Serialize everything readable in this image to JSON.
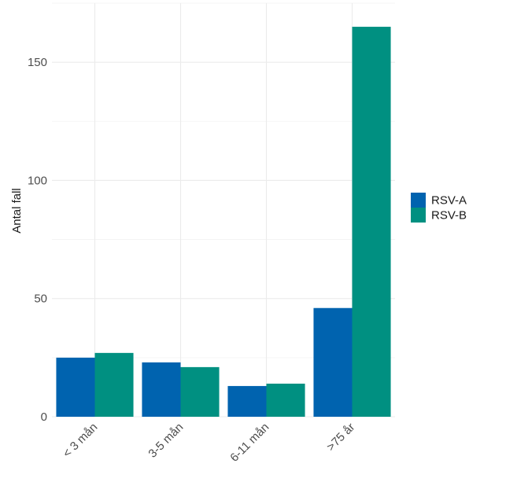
{
  "chart_data": {
    "type": "bar",
    "title": "",
    "xlabel": "",
    "ylabel": "Antal fall",
    "categories": [
      "< 3 mån",
      "3-5 mån",
      "6-11 mån",
      ">75 år"
    ],
    "series": [
      {
        "name": "RSV-A",
        "color": "#0063AF",
        "values": [
          25,
          23,
          13,
          46
        ]
      },
      {
        "name": "RSV-B",
        "color": "#009081",
        "values": [
          27,
          21,
          14,
          165
        ]
      }
    ],
    "ylim": [
      0,
      175
    ],
    "yticks": [
      0,
      50,
      100,
      150
    ],
    "grid": true,
    "legend_position": "right"
  }
}
